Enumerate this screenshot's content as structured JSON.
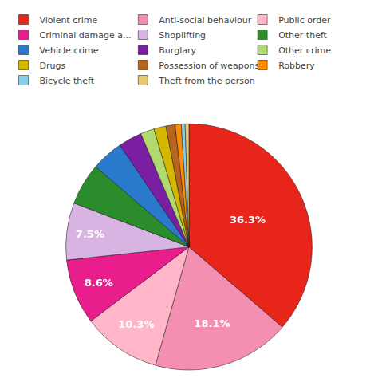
{
  "chart_data": {
    "type": "pie",
    "categories": [
      "Violent crime",
      "Anti-social behaviour",
      "Public order",
      "Criminal damage a...",
      "Shoplifting",
      "Other theft",
      "Vehicle crime",
      "Burglary",
      "Other crime",
      "Drugs",
      "Possession of weapons",
      "Robbery",
      "Bicycle theft",
      "Theft from the person"
    ],
    "values": [
      36.3,
      18.1,
      10.3,
      8.6,
      7.5,
      5.5,
      4.2,
      3.1,
      1.8,
      1.6,
      1.2,
      0.8,
      0.5,
      0.5
    ],
    "value_labels": [
      "36.3%",
      "18.1%",
      "10.3%",
      "8.6%",
      "7.5%",
      null,
      null,
      null,
      null,
      null,
      null,
      null,
      null,
      null
    ],
    "colors": [
      "#e8251a",
      "#f48fb1",
      "#ffb6c8",
      "#e91e8c",
      "#d8b4e2",
      "#2a8c2a",
      "#2979cc",
      "#7b1fa2",
      "#b0d96e",
      "#d4b800",
      "#b5651d",
      "#ff8c00",
      "#87ceeb",
      "#e8c96e"
    ],
    "legend": "top"
  }
}
